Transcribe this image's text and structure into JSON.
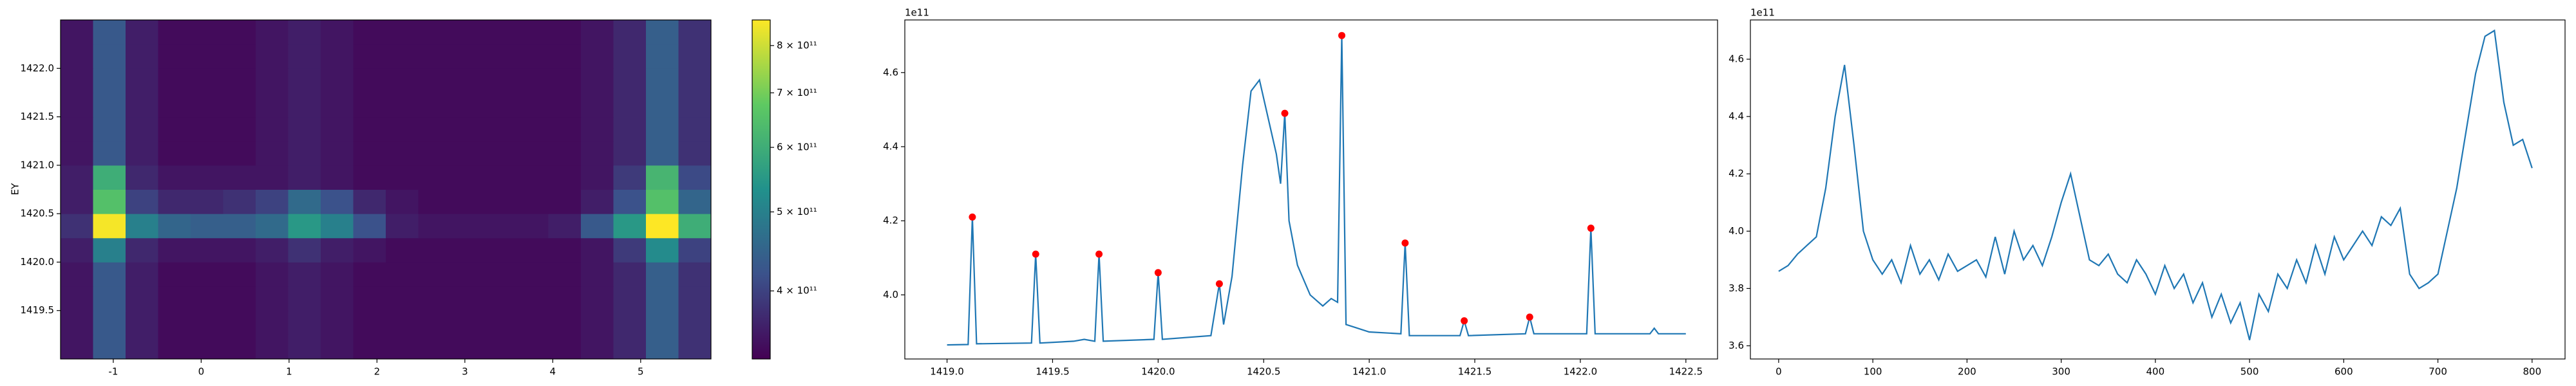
{
  "chart_data": [
    {
      "type": "heatmap",
      "ylabel": "EY",
      "colormap": "viridis",
      "color_scale": "log",
      "xlim": [
        -1.6,
        5.8
      ],
      "ylim": [
        1419.0,
        1422.5
      ],
      "xticks": [
        -1,
        0,
        1,
        2,
        3,
        4,
        5
      ],
      "yticks": [
        1419.5,
        {
          "value": 1420,
          "label": "1420.0"
        },
        1420.5,
        {
          "value": 1421,
          "label": "1421.0"
        },
        1421.5,
        {
          "value": 1422,
          "label": "1422.0"
        }
      ],
      "clim": [
        330000000000.0,
        860000000000.0
      ],
      "cticks": [
        {
          "value": 400000000000.0,
          "label": "4 × 10¹¹"
        },
        {
          "value": 500000000000.0,
          "label": "5 × 10¹¹"
        },
        {
          "value": 600000000000.0,
          "label": "6 × 10¹¹"
        },
        {
          "value": 700000000000.0,
          "label": "7 × 10¹¹"
        },
        {
          "value": 800000000000.0,
          "label": "8 × 10¹¹"
        }
      ],
      "z": [
        [
          350000000000.0,
          430000000000.0,
          360000000000.0,
          340000000000.0,
          340000000000.0,
          340000000000.0,
          350000000000.0,
          360000000000.0,
          350000000000.0,
          340000000000.0,
          340000000000.0,
          340000000000.0,
          340000000000.0,
          340000000000.0,
          340000000000.0,
          340000000000.0,
          350000000000.0,
          370000000000.0,
          440000000000.0,
          380000000000.0
        ],
        [
          350000000000.0,
          430000000000.0,
          360000000000.0,
          340000000000.0,
          340000000000.0,
          340000000000.0,
          350000000000.0,
          360000000000.0,
          350000000000.0,
          340000000000.0,
          340000000000.0,
          340000000000.0,
          340000000000.0,
          340000000000.0,
          340000000000.0,
          340000000000.0,
          350000000000.0,
          370000000000.0,
          440000000000.0,
          380000000000.0
        ],
        [
          350000000000.0,
          430000000000.0,
          360000000000.0,
          340000000000.0,
          340000000000.0,
          340000000000.0,
          350000000000.0,
          360000000000.0,
          350000000000.0,
          340000000000.0,
          340000000000.0,
          340000000000.0,
          340000000000.0,
          340000000000.0,
          340000000000.0,
          340000000000.0,
          350000000000.0,
          370000000000.0,
          440000000000.0,
          380000000000.0
        ],
        [
          350000000000.0,
          430000000000.0,
          360000000000.0,
          340000000000.0,
          340000000000.0,
          340000000000.0,
          350000000000.0,
          360000000000.0,
          350000000000.0,
          340000000000.0,
          340000000000.0,
          340000000000.0,
          340000000000.0,
          340000000000.0,
          340000000000.0,
          340000000000.0,
          350000000000.0,
          370000000000.0,
          440000000000.0,
          380000000000.0
        ],
        [
          360000000000.0,
          500000000000.0,
          370000000000.0,
          350000000000.0,
          350000000000.0,
          350000000000.0,
          360000000000.0,
          380000000000.0,
          360000000000.0,
          350000000000.0,
          340000000000.0,
          340000000000.0,
          340000000000.0,
          340000000000.0,
          340000000000.0,
          340000000000.0,
          350000000000.0,
          390000000000.0,
          520000000000.0,
          400000000000.0
        ],
        [
          380000000000.0,
          850000000000.0,
          500000000000.0,
          450000000000.0,
          440000000000.0,
          440000000000.0,
          460000000000.0,
          550000000000.0,
          500000000000.0,
          420000000000.0,
          360000000000.0,
          350000000000.0,
          350000000000.0,
          350000000000.0,
          350000000000.0,
          360000000000.0,
          430000000000.0,
          550000000000.0,
          860000000000.0,
          600000000000.0
        ],
        [
          360000000000.0,
          650000000000.0,
          400000000000.0,
          370000000000.0,
          370000000000.0,
          380000000000.0,
          400000000000.0,
          460000000000.0,
          420000000000.0,
          370000000000.0,
          350000000000.0,
          340000000000.0,
          340000000000.0,
          340000000000.0,
          340000000000.0,
          340000000000.0,
          360000000000.0,
          420000000000.0,
          650000000000.0,
          450000000000.0
        ],
        [
          360000000000.0,
          600000000000.0,
          370000000000.0,
          350000000000.0,
          350000000000.0,
          350000000000.0,
          350000000000.0,
          360000000000.0,
          350000000000.0,
          340000000000.0,
          340000000000.0,
          340000000000.0,
          340000000000.0,
          340000000000.0,
          340000000000.0,
          340000000000.0,
          350000000000.0,
          390000000000.0,
          620000000000.0,
          410000000000.0
        ],
        [
          350000000000.0,
          430000000000.0,
          360000000000.0,
          340000000000.0,
          340000000000.0,
          340000000000.0,
          350000000000.0,
          360000000000.0,
          350000000000.0,
          340000000000.0,
          340000000000.0,
          340000000000.0,
          340000000000.0,
          340000000000.0,
          340000000000.0,
          340000000000.0,
          350000000000.0,
          370000000000.0,
          440000000000.0,
          380000000000.0
        ],
        [
          350000000000.0,
          430000000000.0,
          360000000000.0,
          340000000000.0,
          340000000000.0,
          340000000000.0,
          350000000000.0,
          360000000000.0,
          350000000000.0,
          340000000000.0,
          340000000000.0,
          340000000000.0,
          340000000000.0,
          340000000000.0,
          340000000000.0,
          340000000000.0,
          350000000000.0,
          370000000000.0,
          440000000000.0,
          380000000000.0
        ],
        [
          350000000000.0,
          430000000000.0,
          360000000000.0,
          340000000000.0,
          340000000000.0,
          340000000000.0,
          350000000000.0,
          360000000000.0,
          350000000000.0,
          340000000000.0,
          340000000000.0,
          340000000000.0,
          340000000000.0,
          340000000000.0,
          340000000000.0,
          340000000000.0,
          350000000000.0,
          370000000000.0,
          440000000000.0,
          380000000000.0
        ],
        [
          350000000000.0,
          430000000000.0,
          360000000000.0,
          340000000000.0,
          340000000000.0,
          340000000000.0,
          350000000000.0,
          360000000000.0,
          350000000000.0,
          340000000000.0,
          340000000000.0,
          340000000000.0,
          340000000000.0,
          340000000000.0,
          340000000000.0,
          340000000000.0,
          350000000000.0,
          370000000000.0,
          440000000000.0,
          380000000000.0
        ],
        [
          350000000000.0,
          430000000000.0,
          360000000000.0,
          340000000000.0,
          340000000000.0,
          340000000000.0,
          350000000000.0,
          360000000000.0,
          350000000000.0,
          340000000000.0,
          340000000000.0,
          340000000000.0,
          340000000000.0,
          340000000000.0,
          340000000000.0,
          340000000000.0,
          350000000000.0,
          370000000000.0,
          440000000000.0,
          380000000000.0
        ],
        [
          350000000000.0,
          430000000000.0,
          360000000000.0,
          340000000000.0,
          340000000000.0,
          340000000000.0,
          350000000000.0,
          360000000000.0,
          350000000000.0,
          340000000000.0,
          340000000000.0,
          340000000000.0,
          340000000000.0,
          340000000000.0,
          340000000000.0,
          340000000000.0,
          350000000000.0,
          370000000000.0,
          440000000000.0,
          380000000000.0
        ]
      ]
    },
    {
      "type": "line",
      "offset_label": "1e11",
      "color": "#1f77b4",
      "xlim": [
        1418.8,
        1422.65
      ],
      "ylim": [
        3.827,
        4.742
      ],
      "xticks": [
        {
          "value": 1419,
          "label": "1419.0"
        },
        1419.5,
        {
          "value": 1420,
          "label": "1420.0"
        },
        1420.5,
        {
          "value": 1421,
          "label": "1421.0"
        },
        1421.5,
        {
          "value": 1422,
          "label": "1422.0"
        },
        1422.5
      ],
      "yticks": [
        {
          "value": 4,
          "label": "4.0"
        },
        4.2,
        4.4,
        4.6
      ],
      "x": [
        1419.0,
        1419.1,
        1419.12,
        1419.14,
        1419.4,
        1419.42,
        1419.44,
        1419.6,
        1419.65,
        1419.7,
        1419.72,
        1419.74,
        1419.98,
        1420.0,
        1420.02,
        1420.25,
        1420.29,
        1420.31,
        1420.35,
        1420.4,
        1420.44,
        1420.48,
        1420.52,
        1420.56,
        1420.58,
        1420.6,
        1420.62,
        1420.66,
        1420.72,
        1420.78,
        1420.82,
        1420.85,
        1420.87,
        1420.89,
        1421.0,
        1421.15,
        1421.17,
        1421.19,
        1421.43,
        1421.45,
        1421.47,
        1421.74,
        1421.76,
        1421.78,
        1422.03,
        1422.05,
        1422.07,
        1422.33,
        1422.35,
        1422.37,
        1422.5
      ],
      "values": [
        3.865,
        3.866,
        4.21,
        3.868,
        3.87,
        4.11,
        3.87,
        3.875,
        3.88,
        3.875,
        4.11,
        3.875,
        3.88,
        4.06,
        3.88,
        3.89,
        4.03,
        3.92,
        4.05,
        4.35,
        4.55,
        4.58,
        4.48,
        4.38,
        4.3,
        4.49,
        4.2,
        4.08,
        4.0,
        3.97,
        3.99,
        3.98,
        4.7,
        3.92,
        3.9,
        3.895,
        4.14,
        3.89,
        3.89,
        3.93,
        3.89,
        3.895,
        3.94,
        3.895,
        3.895,
        4.18,
        3.895,
        3.895,
        3.91,
        3.895,
        3.895
      ],
      "peaks": {
        "color": "#ff0000",
        "x": [
          1419.12,
          1419.42,
          1419.72,
          1420.0,
          1420.29,
          1420.6,
          1420.87,
          1421.17,
          1421.45,
          1421.76,
          1422.05
        ],
        "values": [
          4.21,
          4.11,
          4.11,
          4.06,
          4.03,
          4.49,
          4.7,
          4.14,
          3.93,
          3.94,
          4.18
        ]
      }
    },
    {
      "type": "line",
      "offset_label": "1e11",
      "color": "#1f77b4",
      "xlim": [
        -30,
        835
      ],
      "ylim": [
        3.554,
        4.737
      ],
      "xticks": [
        0,
        100,
        200,
        300,
        400,
        500,
        600,
        700,
        800
      ],
      "yticks": [
        3.6,
        3.8,
        {
          "value": 4,
          "label": "4.0"
        },
        4.2,
        4.4,
        4.6
      ],
      "x": [
        0,
        10,
        20,
        30,
        40,
        50,
        60,
        70,
        80,
        90,
        100,
        110,
        120,
        130,
        140,
        150,
        160,
        170,
        180,
        190,
        200,
        210,
        220,
        230,
        240,
        250,
        260,
        270,
        280,
        290,
        300,
        310,
        320,
        330,
        340,
        350,
        360,
        370,
        380,
        390,
        400,
        410,
        420,
        430,
        440,
        450,
        460,
        470,
        480,
        490,
        500,
        510,
        520,
        530,
        540,
        550,
        560,
        570,
        580,
        590,
        600,
        610,
        620,
        630,
        640,
        650,
        660,
        670,
        680,
        690,
        700,
        710,
        720,
        730,
        740,
        750,
        760,
        770,
        780,
        790,
        800
      ],
      "values": [
        3.86,
        3.88,
        3.92,
        3.95,
        3.98,
        4.15,
        4.4,
        4.58,
        4.3,
        4.0,
        3.9,
        3.85,
        3.9,
        3.82,
        3.95,
        3.85,
        3.9,
        3.83,
        3.92,
        3.86,
        3.88,
        3.9,
        3.84,
        3.98,
        3.85,
        4.0,
        3.9,
        3.95,
        3.88,
        3.98,
        4.1,
        4.2,
        4.05,
        3.9,
        3.88,
        3.92,
        3.85,
        3.82,
        3.9,
        3.85,
        3.78,
        3.88,
        3.8,
        3.85,
        3.75,
        3.82,
        3.7,
        3.78,
        3.68,
        3.75,
        3.62,
        3.78,
        3.72,
        3.85,
        3.8,
        3.9,
        3.82,
        3.95,
        3.85,
        3.98,
        3.9,
        3.95,
        4.0,
        3.95,
        4.05,
        4.02,
        4.08,
        3.85,
        3.8,
        3.82,
        3.85,
        4.0,
        4.15,
        4.35,
        4.55,
        4.68,
        4.7,
        4.45,
        4.3,
        4.32,
        4.22
      ]
    }
  ]
}
